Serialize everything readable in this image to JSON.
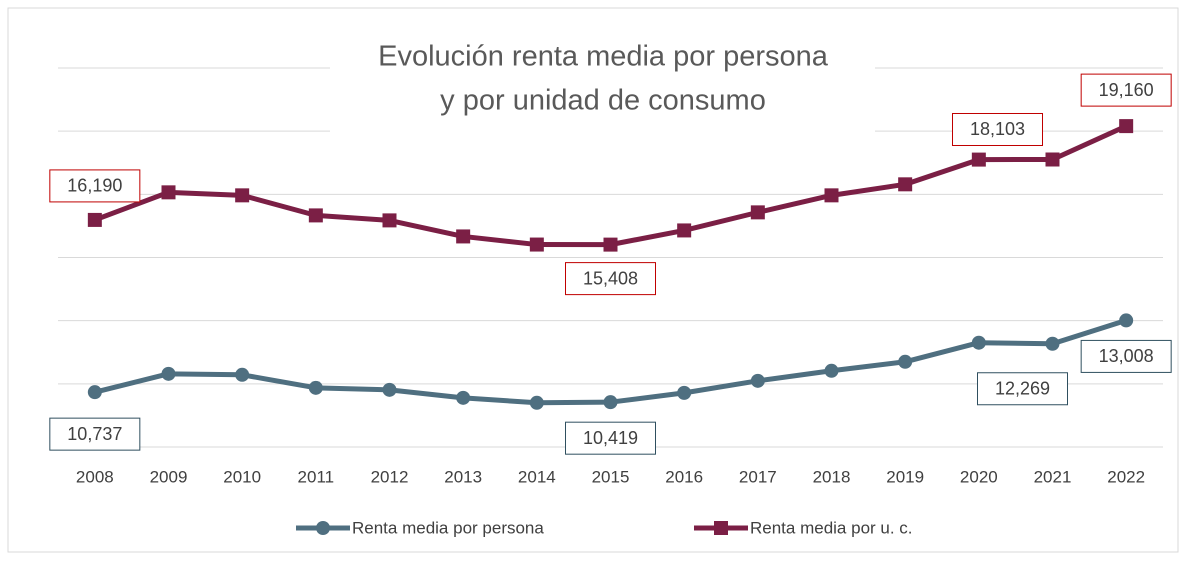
{
  "chart_data": {
    "type": "line",
    "title": [
      "Evolución renta media por persona",
      "y por unidad de consumo"
    ],
    "categories": [
      "2008",
      "2009",
      "2010",
      "2011",
      "2012",
      "2013",
      "2014",
      "2015",
      "2016",
      "2017",
      "2018",
      "2019",
      "2020",
      "2021",
      "2022"
    ],
    "series": [
      {
        "name": "Renta media por persona",
        "color": "#4f6f80",
        "marker": "circle",
        "values": [
          10737,
          11317,
          11286,
          10873,
          10810,
          10556,
          10400,
          10419,
          10714,
          11095,
          11413,
          11698,
          12302,
          12269,
          13008
        ],
        "value_labels": [
          "10,737",
          null,
          null,
          null,
          null,
          null,
          null,
          "10,419",
          null,
          null,
          null,
          null,
          null,
          "12,269",
          "13,008"
        ]
      },
      {
        "name": "Renta media por u. c.",
        "color": "#7b1f45",
        "marker": "square",
        "values": [
          16190,
          17063,
          16968,
          16333,
          16175,
          15667,
          15410,
          15408,
          15857,
          16429,
          16968,
          17317,
          18100,
          18103,
          19160
        ],
        "value_labels": [
          "16,190",
          null,
          null,
          null,
          null,
          null,
          null,
          "15,408",
          null,
          null,
          null,
          null,
          null,
          "18,103",
          "19,160"
        ]
      }
    ],
    "ylim": [
      9000,
      21000
    ],
    "yticks": [
      9000,
      11000,
      13000,
      15000,
      17000,
      19000,
      21000
    ],
    "grid": true,
    "legend": "bottom"
  }
}
